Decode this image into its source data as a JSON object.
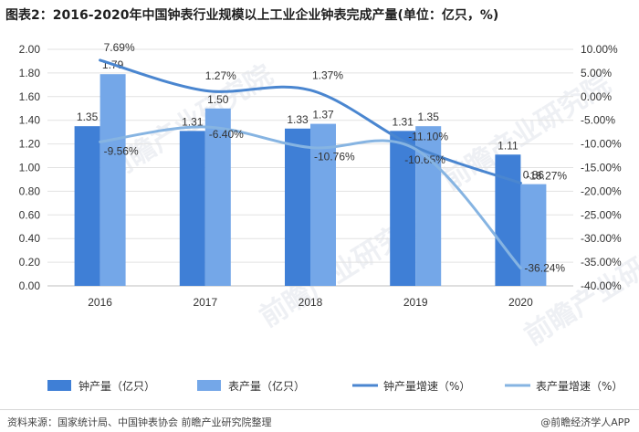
{
  "title": "图表2：2016-2020年中国钟表行业规模以上工业企业钟表完成产量(单位：亿只，%)",
  "source": "资料来源：国家统计局、中国钟表协会 前瞻产业研究院整理",
  "brand": "@前瞻经济学人APP",
  "watermark": "前瞻产业研究院",
  "colors": {
    "bar1": "#3f7fd6",
    "bar2": "#74a7e8",
    "line1": "#4a86d0",
    "line2": "#86b4e2",
    "grid": "#e2e2e2",
    "axis": "#bfbfbf"
  },
  "chart_data": {
    "type": "bar",
    "categories": [
      "2016",
      "2017",
      "2018",
      "2019",
      "2020"
    ],
    "series": [
      {
        "name": "钟产量（亿只）",
        "kind": "bar",
        "axis": "left",
        "values": [
          1.35,
          1.31,
          1.33,
          1.31,
          1.11
        ],
        "labels": [
          "1.35",
          "1.31",
          "1.33",
          "1.31",
          "1.11"
        ]
      },
      {
        "name": "表产量（亿只）",
        "kind": "bar",
        "axis": "left",
        "values": [
          1.79,
          1.5,
          1.37,
          1.35,
          0.86
        ],
        "labels": [
          "1.79",
          "1.50",
          "1.37",
          "1.35",
          "0.86"
        ]
      },
      {
        "name": "钟产量增速（%）",
        "kind": "line",
        "axis": "right",
        "values": [
          7.69,
          1.27,
          1.37,
          -10.65,
          -18.27
        ],
        "labels": [
          "7.69%",
          "1.27%",
          "1.37%",
          "-10.65%",
          "-18.27%"
        ]
      },
      {
        "name": "表产量增速（%）",
        "kind": "line",
        "axis": "right",
        "values": [
          -9.56,
          -6.4,
          -10.76,
          -11.1,
          -36.24
        ],
        "labels": [
          "-9.56%",
          "-6.40%",
          "-10.76%",
          "-11.10%",
          "-36.24%"
        ]
      }
    ],
    "left_axis": {
      "min": 0,
      "max": 2,
      "step": 0.2,
      "ticks": [
        "0.00",
        "0.20",
        "0.40",
        "0.60",
        "0.80",
        "1.00",
        "1.20",
        "1.40",
        "1.60",
        "1.80",
        "2.00"
      ]
    },
    "right_axis": {
      "min": -40,
      "max": 10,
      "step": 5,
      "ticks": [
        "-40.00%",
        "-35.00%",
        "-30.00%",
        "-25.00%",
        "-20.00%",
        "-15.00%",
        "-10.00%",
        "-5.00%",
        "0.00%",
        "5.00%",
        "10.00%"
      ]
    },
    "grid": true,
    "legend": "bottom"
  }
}
